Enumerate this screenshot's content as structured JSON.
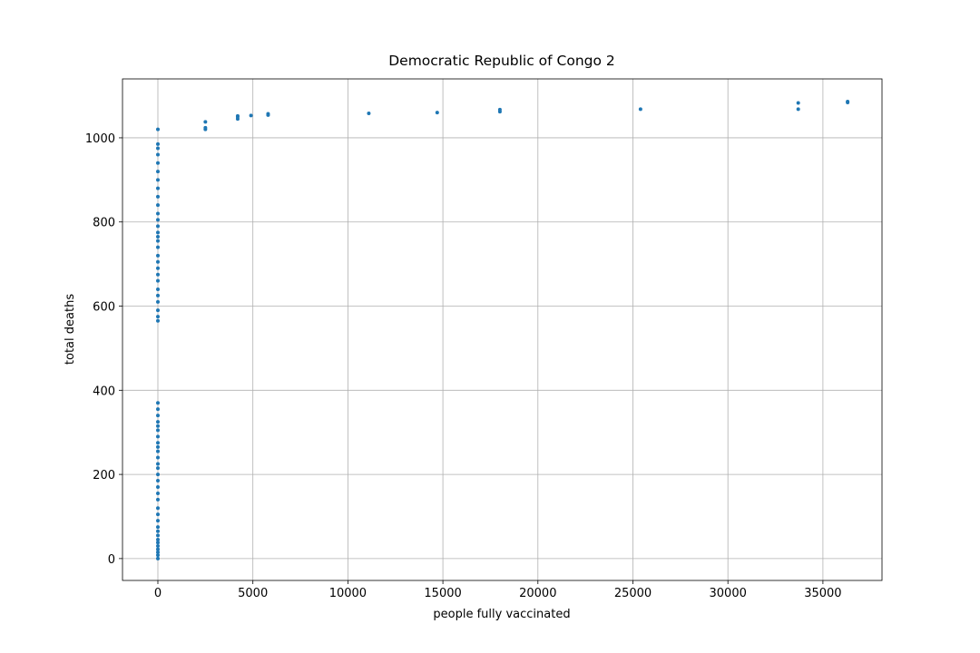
{
  "chart_data": {
    "type": "scatter",
    "title": "Democratic Republic of Congo 2",
    "x_label": "people fully vaccinated",
    "y_label": "total deaths",
    "color": "#1f77b4",
    "grid": true,
    "xlim": [
      -1862,
      38109
    ],
    "ylim": [
      -52,
      1140
    ],
    "xticks": [
      0,
      5000,
      10000,
      15000,
      20000,
      25000,
      30000,
      35000
    ],
    "yticks": [
      0,
      200,
      400,
      600,
      800,
      1000
    ],
    "x": [
      0,
      0,
      0,
      0,
      0,
      0,
      0,
      0,
      0,
      0,
      0,
      0,
      0,
      0,
      0,
      0,
      0,
      0,
      0,
      0,
      0,
      0,
      0,
      0,
      0,
      0,
      0,
      0,
      0,
      0,
      0,
      0,
      0,
      0,
      0,
      0,
      0,
      0,
      0,
      0,
      0,
      0,
      0,
      0,
      0,
      0,
      0,
      0,
      0,
      0,
      0,
      0,
      0,
      0,
      0,
      0,
      0,
      0,
      0,
      2500,
      2500,
      2500,
      4200,
      4200,
      4200,
      4900,
      5800,
      5800,
      11100,
      14700,
      18000,
      18000,
      25400,
      33700,
      33700,
      36300,
      36300
    ],
    "y": [
      0,
      8,
      15,
      22,
      30,
      38,
      45,
      55,
      65,
      75,
      90,
      105,
      120,
      140,
      155,
      170,
      185,
      200,
      215,
      225,
      240,
      255,
      265,
      275,
      290,
      305,
      315,
      325,
      340,
      355,
      370,
      565,
      575,
      590,
      610,
      625,
      640,
      660,
      675,
      690,
      705,
      720,
      740,
      755,
      765,
      775,
      790,
      805,
      820,
      840,
      860,
      880,
      900,
      920,
      940,
      960,
      975,
      985,
      1020,
      1020,
      1024,
      1038,
      1045,
      1050,
      1052,
      1053,
      1054,
      1057,
      1058,
      1060,
      1062,
      1067,
      1068,
      1068,
      1083,
      1084,
      1086
    ]
  }
}
